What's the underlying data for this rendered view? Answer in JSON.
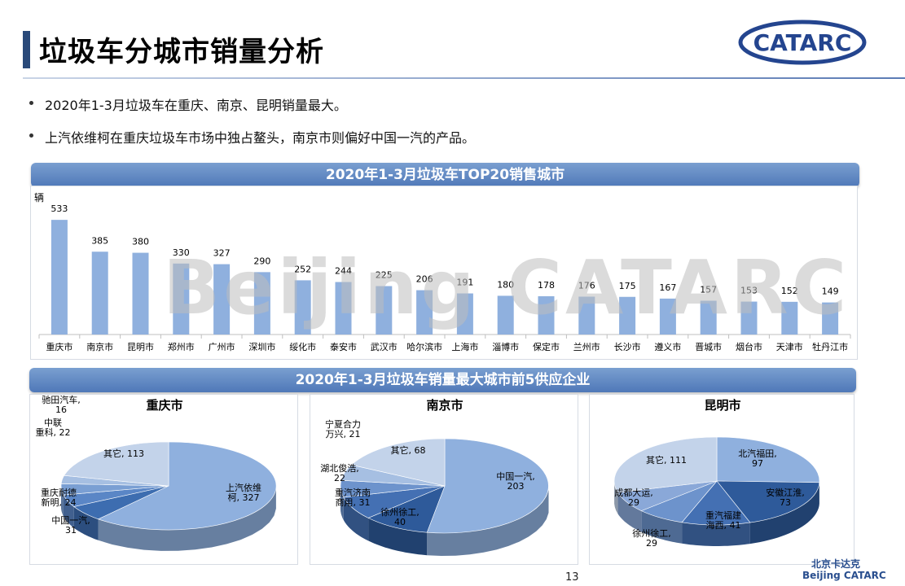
{
  "slide": {
    "title": "垃圾车分城市销量分析",
    "page_number": "13",
    "footer_cn": "北京卡达克",
    "footer_en": "Beijing CATARC",
    "logo_text": "CATARC",
    "watermark": "Beijing CATARC"
  },
  "bullets": [
    "2020年1-3月垃圾车在重庆、南京、昆明销量最大。",
    "上汽依维柯在重庆垃圾车市场中独占鳌头，南京市则偏好中国一汽的产品。"
  ],
  "banners": {
    "top20": "2020年1-3月垃圾车TOP20销售城市",
    "top5": "2020年1-3月垃圾车销量最大城市前5供应企业"
  },
  "chart_data": [
    {
      "type": "bar",
      "title": "2020年1-3月垃圾车TOP20销售城市",
      "ylabel": "辆",
      "categories": [
        "重庆市",
        "南京市",
        "昆明市",
        "郑州市",
        "广州市",
        "深圳市",
        "绥化市",
        "泰安市",
        "武汉市",
        "哈尔滨市",
        "上海市",
        "淄博市",
        "保定市",
        "兰州市",
        "长沙市",
        "遵义市",
        "晋城市",
        "烟台市",
        "天津市",
        "牡丹江市"
      ],
      "values": [
        533,
        385,
        380,
        330,
        327,
        290,
        252,
        244,
        225,
        206,
        191,
        180,
        178,
        176,
        175,
        167,
        157,
        153,
        152,
        149
      ],
      "ylim": [
        0,
        560
      ],
      "color": "#8fb0de"
    },
    {
      "type": "pie",
      "title": "重庆市",
      "labels": [
        "上汽依维柯",
        "中国一汽",
        "重庆耐德新明",
        "中联重科",
        "驰田汽车",
        "其它"
      ],
      "label_texts": [
        "上汽依维柯, 327",
        "中国一汽, 31",
        "重庆耐德新明, 24",
        "中联重科, 22",
        "驰田汽车, 16",
        "其它, 113"
      ],
      "values": [
        327,
        31,
        24,
        22,
        16,
        113
      ],
      "colors": [
        "#8fb0de",
        "#3d6db0",
        "#5a86c6",
        "#7a9fd3",
        "#a6bfe2",
        "#c3d3ea"
      ]
    },
    {
      "type": "pie",
      "title": "南京市",
      "labels": [
        "中国一汽",
        "徐州徐工",
        "重汽济南商用",
        "湖北俊浩",
        "宁夏合力万兴",
        "其它"
      ],
      "label_texts": [
        "中国一汽, 203",
        "徐州徐工, 40",
        "重汽济南商用, 31",
        "湖北俊浩, 22",
        "宁夏合力万兴, 21",
        "其它, 68"
      ],
      "values": [
        203,
        40,
        31,
        22,
        21,
        68
      ],
      "colors": [
        "#8fb0de",
        "#2e5a9a",
        "#4470b3",
        "#6d93cc",
        "#a6bfe2",
        "#c3d3ea"
      ]
    },
    {
      "type": "pie",
      "title": "昆明市",
      "labels": [
        "北汽福田",
        "安徽江淮",
        "重汽福建海西",
        "徐州徐工",
        "成都大运",
        "其它"
      ],
      "label_texts": [
        "北汽福田, 97",
        "安徽江淮, 73",
        "重汽福建海西, 41",
        "徐州徐工, 29",
        "成都大运, 29",
        "其它, 111"
      ],
      "values": [
        97,
        73,
        41,
        29,
        29,
        111
      ],
      "colors": [
        "#8fb0de",
        "#2e5a9a",
        "#4470b3",
        "#6d93cc",
        "#8aa8d8",
        "#c3d3ea"
      ]
    }
  ]
}
